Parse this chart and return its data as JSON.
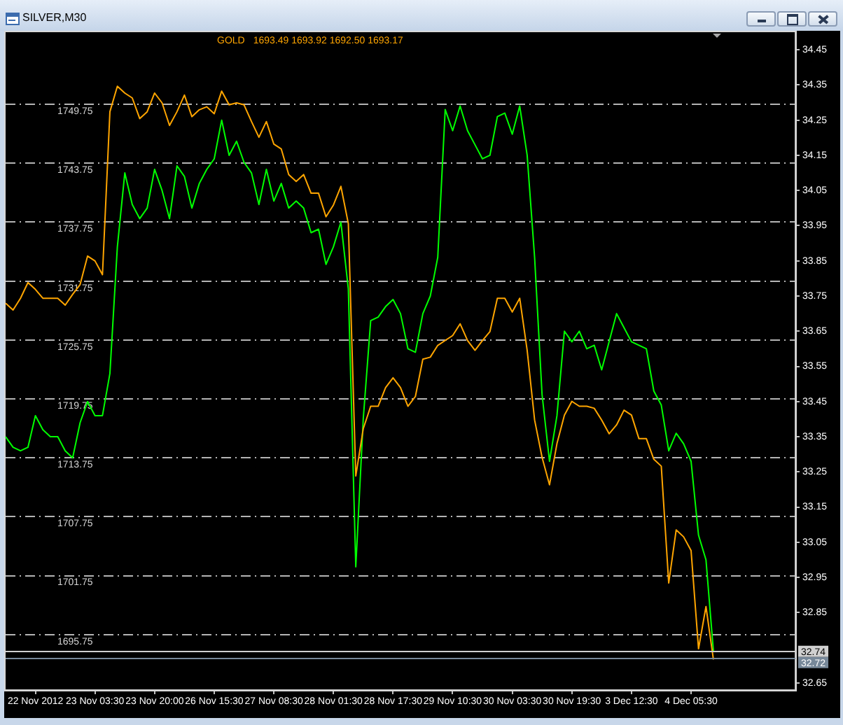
{
  "chart_data": {
    "type": "line",
    "title": "SILVER,M30",
    "categories": [
      null,
      null,
      null,
      null,
      "22 Nov 2012",
      null,
      null,
      null,
      null,
      null,
      null,
      null,
      "23 Nov 03:30",
      null,
      null,
      null,
      null,
      null,
      null,
      null,
      "23 Nov 20:00",
      null,
      null,
      null,
      null,
      null,
      null,
      null,
      "26 Nov 15:30",
      null,
      null,
      null,
      null,
      null,
      null,
      null,
      "27 Nov 08:30",
      null,
      null,
      null,
      null,
      null,
      null,
      null,
      "28 Nov 01:30",
      null,
      null,
      null,
      null,
      null,
      null,
      null,
      "28 Nov 17:30",
      null,
      null,
      null,
      null,
      null,
      null,
      null,
      "29 Nov 10:30",
      null,
      null,
      null,
      null,
      null,
      null,
      null,
      "30 Nov 03:30",
      null,
      null,
      null,
      null,
      null,
      null,
      null,
      "30 Nov 19:30",
      null,
      null,
      null,
      null,
      null,
      null,
      null,
      "3 Dec 12:30",
      null,
      null,
      null,
      null,
      null,
      null,
      null,
      "4 Dec 05:30",
      null,
      null,
      null,
      null,
      null,
      null,
      null,
      null,
      null,
      null,
      null,
      null,
      null,
      null
    ],
    "series": [
      {
        "name": "GOLD",
        "color": "#ffa500",
        "values": [
          1729.5,
          1728.8,
          1730.0,
          1731.6,
          1730.9,
          1730.0,
          1730.0,
          1730.0,
          1729.3,
          1730.4,
          1731.4,
          1734.3,
          1733.8,
          1732.4,
          1749.0,
          1751.6,
          1750.9,
          1750.4,
          1748.3,
          1749.0,
          1750.9,
          1749.9,
          1747.6,
          1749.0,
          1750.7,
          1748.5,
          1749.2,
          1749.5,
          1748.8,
          1751.1,
          1749.7,
          1749.9,
          1749.7,
          1748.0,
          1746.4,
          1748.0,
          1745.7,
          1745.2,
          1742.6,
          1741.9,
          1742.6,
          1740.7,
          1740.7,
          1738.3,
          1739.5,
          1741.4,
          1737.6,
          1711.9,
          1716.7,
          1719.0,
          1719.0,
          1720.9,
          1721.9,
          1720.9,
          1719.0,
          1720.0,
          1723.8,
          1724.0,
          1725.2,
          1725.7,
          1726.2,
          1727.4,
          1725.7,
          1724.7,
          1725.7,
          1726.6,
          1730.0,
          1730.0,
          1728.6,
          1730.0,
          1724.7,
          1717.6,
          1713.8,
          1711.0,
          1715.2,
          1718.1,
          1719.5,
          1719.0,
          1719.0,
          1718.8,
          1717.6,
          1716.2,
          1717.1,
          1718.6,
          1718.1,
          1715.7,
          1715.7,
          1713.6,
          1712.9,
          1701.0,
          1706.4,
          1705.7,
          1704.3,
          1694.3,
          1698.6,
          1693.2,
          null,
          null,
          null,
          null,
          null,
          null,
          null,
          null,
          null,
          null,
          null
        ]
      },
      {
        "color": "#00ff00",
        "axis": "y2",
        "values": [
          33.35,
          33.32,
          33.31,
          33.32,
          33.41,
          33.37,
          33.35,
          33.35,
          33.31,
          33.29,
          33.39,
          33.45,
          33.41,
          33.41,
          33.53,
          33.89,
          34.1,
          34.01,
          33.97,
          34.0,
          34.11,
          34.05,
          33.97,
          34.12,
          34.09,
          34.0,
          34.07,
          34.11,
          34.14,
          34.25,
          34.15,
          34.19,
          34.13,
          34.1,
          34.01,
          34.11,
          34.02,
          34.07,
          34.0,
          34.02,
          34.0,
          33.93,
          33.94,
          33.84,
          33.89,
          33.96,
          33.77,
          32.98,
          33.4,
          33.68,
          33.69,
          33.72,
          33.74,
          33.7,
          33.6,
          33.59,
          33.7,
          33.75,
          33.86,
          34.28,
          34.22,
          34.29,
          34.22,
          34.18,
          34.14,
          34.15,
          34.26,
          34.27,
          34.21,
          34.29,
          34.15,
          33.86,
          33.47,
          33.28,
          33.41,
          33.65,
          33.62,
          33.65,
          33.6,
          33.61,
          33.54,
          33.62,
          33.7,
          33.66,
          33.62,
          33.61,
          33.6,
          33.48,
          33.44,
          33.31,
          33.36,
          33.33,
          33.28,
          33.07,
          33.0,
          32.74,
          null,
          null,
          null,
          null,
          null,
          null,
          null,
          null,
          null,
          null,
          null
        ]
      }
    ],
    "ylim": [
      1690.1,
      1757.1
    ],
    "yticks": [
      1695.75,
      1701.75,
      1707.75,
      1713.75,
      1719.75,
      1725.75,
      1731.75,
      1737.75,
      1743.75,
      1749.75
    ],
    "y2lim": [
      32.63,
      34.5
    ],
    "y2ticks": [
      32.65,
      32.85,
      32.95,
      33.05,
      33.15,
      33.25,
      33.35,
      33.45,
      33.55,
      33.65,
      33.75,
      33.85,
      33.95,
      34.05,
      34.15,
      34.25,
      34.35,
      34.45
    ],
    "ref_lines": [
      {
        "axis": "y2",
        "value": 32.74,
        "label": "32.74",
        "color": "#d0d0d0"
      },
      {
        "axis": "y2",
        "value": 32.72,
        "label": "32.72",
        "color": "#778899"
      }
    ],
    "annotations": [
      "1693.49 1693.92 1692.50 1693.17"
    ],
    "grid": "y"
  }
}
